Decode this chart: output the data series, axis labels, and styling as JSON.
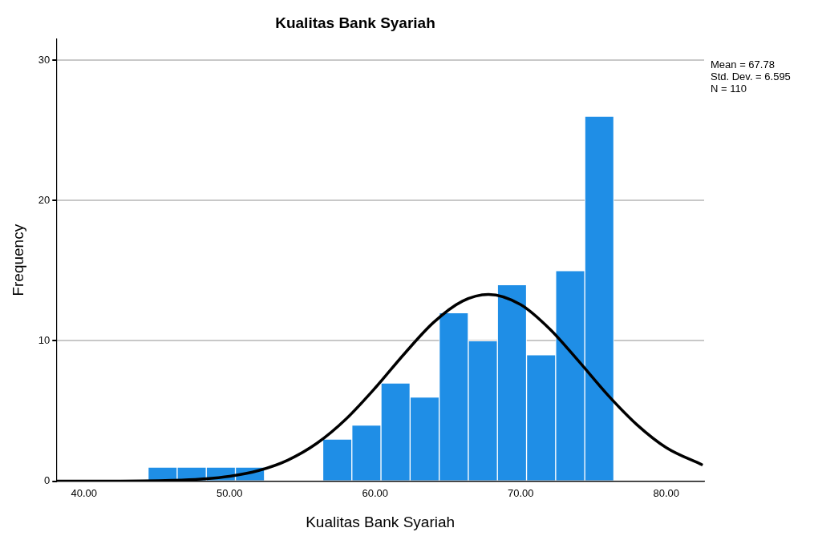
{
  "chart_data": {
    "type": "histogram",
    "title": "Kualitas Bank Syariah",
    "xlabel": "Kualitas Bank Syariah",
    "ylabel": "Frequency",
    "bins": [
      44.4,
      46.4,
      48.4,
      50.4,
      52.4,
      54.4,
      56.4,
      58.4,
      60.4,
      62.4,
      64.4,
      66.4,
      68.4,
      70.4,
      72.4,
      74.4,
      76.4
    ],
    "values": [
      1,
      1,
      1,
      1,
      0,
      0,
      3,
      4,
      7,
      6,
      12,
      10,
      14,
      9,
      15,
      26
    ],
    "color": "#1f8ee6",
    "series": [
      {
        "type": "line",
        "color": "#000000",
        "x": [
          38.1,
          42,
          44,
          46,
          48,
          50,
          52,
          54,
          56,
          58,
          60,
          62,
          64,
          66,
          67.78,
          70,
          72,
          74,
          76,
          78,
          80,
          82.5
        ],
        "values": [
          0,
          0.01,
          0.02,
          0.06,
          0.15,
          0.35,
          0.76,
          1.5,
          2.7,
          4.43,
          6.64,
          9.07,
          11.3,
          12.83,
          13.31,
          12.58,
          10.84,
          8.53,
          6.12,
          4.01,
          2.39,
          1.15
        ]
      }
    ],
    "xlim": [
      38.1,
      82.6
    ],
    "ylim": [
      0,
      31.5
    ],
    "xticks": [
      {
        "value": 40,
        "label": "40.00"
      },
      {
        "value": 50,
        "label": "50.00"
      },
      {
        "value": 60,
        "label": "60.00"
      },
      {
        "value": 70,
        "label": "70.00"
      },
      {
        "value": 80,
        "label": "80.00"
      }
    ],
    "yticks": [
      0,
      10,
      20,
      30
    ],
    "grid": "y",
    "legend": false,
    "marker": "none",
    "annotations": [
      "Mean = 67.78",
      "Std. Dev. = 6.595",
      "N = 110"
    ]
  }
}
